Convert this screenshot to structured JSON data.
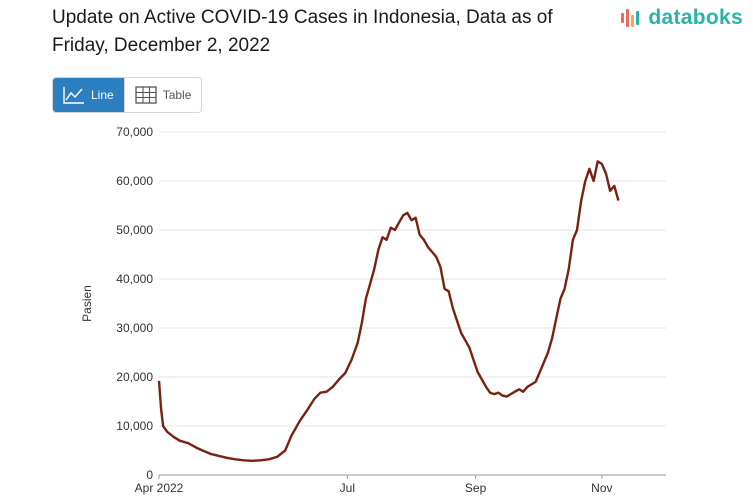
{
  "header": {
    "title_line1": "Update on Active COVID-19 Cases in Indonesia, Data as of",
    "title_line2": "Friday, December 2, 2022",
    "brand": "databoks"
  },
  "toggle": {
    "line_label": "Line",
    "table_label": "Table"
  },
  "colors": {
    "line": "#7a2113",
    "accent": "#2b7fc0",
    "brand": "#2ab3a6",
    "grid": "#e3e3e3"
  },
  "chart_data": {
    "type": "line",
    "ylabel": "Pasien",
    "ylim": [
      0,
      70000
    ],
    "yticks": [
      0,
      10000,
      20000,
      30000,
      40000,
      50000,
      60000,
      70000
    ],
    "ytick_labels": [
      "0",
      "10,000",
      "20,000",
      "30,000",
      "40,000",
      "50,000",
      "60,000",
      "70,000"
    ],
    "xlim": [
      "2022-04-01",
      "2022-12-02"
    ],
    "xticks": [
      {
        "date": "2022-04-01",
        "label": "Apr 2022"
      },
      {
        "date": "2022-07-01",
        "label": "Jul"
      },
      {
        "date": "2022-09-01",
        "label": "Sep"
      },
      {
        "date": "2022-11-01",
        "label": "Nov"
      }
    ],
    "grid": true,
    "series": [
      {
        "values": [
          [
            "2022-04-01",
            19200
          ],
          [
            "2022-04-02",
            13500
          ],
          [
            "2022-04-03",
            10000
          ],
          [
            "2022-04-05",
            8800
          ],
          [
            "2022-04-08",
            7800
          ],
          [
            "2022-04-11",
            7000
          ],
          [
            "2022-04-15",
            6500
          ],
          [
            "2022-04-19",
            5600
          ],
          [
            "2022-04-22",
            5000
          ],
          [
            "2022-04-26",
            4300
          ],
          [
            "2022-04-30",
            3900
          ],
          [
            "2022-05-04",
            3500
          ],
          [
            "2022-05-08",
            3200
          ],
          [
            "2022-05-12",
            3000
          ],
          [
            "2022-05-16",
            2900
          ],
          [
            "2022-05-20",
            3000
          ],
          [
            "2022-05-24",
            3200
          ],
          [
            "2022-05-28",
            3700
          ],
          [
            "2022-06-01",
            5000
          ],
          [
            "2022-06-04",
            8000
          ],
          [
            "2022-06-08",
            11000
          ],
          [
            "2022-06-12",
            13500
          ],
          [
            "2022-06-15",
            15500
          ],
          [
            "2022-06-18",
            16800
          ],
          [
            "2022-06-21",
            17000
          ],
          [
            "2022-06-24",
            18000
          ],
          [
            "2022-06-27",
            19500
          ],
          [
            "2022-06-30",
            20800
          ],
          [
            "2022-07-03",
            23500
          ],
          [
            "2022-07-06",
            27000
          ],
          [
            "2022-07-08",
            31000
          ],
          [
            "2022-07-10",
            36000
          ],
          [
            "2022-07-12",
            39000
          ],
          [
            "2022-07-14",
            42000
          ],
          [
            "2022-07-16",
            46000
          ],
          [
            "2022-07-18",
            48500
          ],
          [
            "2022-07-20",
            48000
          ],
          [
            "2022-07-22",
            50500
          ],
          [
            "2022-07-24",
            50000
          ],
          [
            "2022-07-26",
            51500
          ],
          [
            "2022-07-28",
            53000
          ],
          [
            "2022-07-30",
            53500
          ],
          [
            "2022-08-01",
            52000
          ],
          [
            "2022-08-03",
            52500
          ],
          [
            "2022-08-05",
            49000
          ],
          [
            "2022-08-07",
            48000
          ],
          [
            "2022-08-09",
            46500
          ],
          [
            "2022-08-11",
            45500
          ],
          [
            "2022-08-13",
            44500
          ],
          [
            "2022-08-15",
            42500
          ],
          [
            "2022-08-17",
            38000
          ],
          [
            "2022-08-19",
            37500
          ],
          [
            "2022-08-21",
            34000
          ],
          [
            "2022-08-23",
            31500
          ],
          [
            "2022-08-25",
            29000
          ],
          [
            "2022-08-27",
            27500
          ],
          [
            "2022-08-29",
            26000
          ],
          [
            "2022-08-31",
            23500
          ],
          [
            "2022-09-02",
            21000
          ],
          [
            "2022-09-04",
            19500
          ],
          [
            "2022-09-06",
            18000
          ],
          [
            "2022-09-08",
            16800
          ],
          [
            "2022-09-10",
            16500
          ],
          [
            "2022-09-12",
            16800
          ],
          [
            "2022-09-14",
            16200
          ],
          [
            "2022-09-16",
            16000
          ],
          [
            "2022-09-18",
            16500
          ],
          [
            "2022-09-20",
            17000
          ],
          [
            "2022-09-22",
            17500
          ],
          [
            "2022-09-24",
            17000
          ],
          [
            "2022-09-26",
            18000
          ],
          [
            "2022-09-28",
            18500
          ],
          [
            "2022-09-30",
            19000
          ],
          [
            "2022-10-02",
            21000
          ],
          [
            "2022-10-04",
            23000
          ],
          [
            "2022-10-06",
            25000
          ],
          [
            "2022-10-08",
            28000
          ],
          [
            "2022-10-10",
            32000
          ],
          [
            "2022-10-12",
            36000
          ],
          [
            "2022-10-14",
            38000
          ],
          [
            "2022-10-16",
            42000
          ],
          [
            "2022-10-18",
            48000
          ],
          [
            "2022-10-20",
            50000
          ],
          [
            "2022-10-22",
            56000
          ],
          [
            "2022-10-24",
            60000
          ],
          [
            "2022-10-26",
            62500
          ],
          [
            "2022-10-28",
            60000
          ],
          [
            "2022-10-30",
            64000
          ],
          [
            "2022-11-01",
            63500
          ],
          [
            "2022-11-03",
            61500
          ],
          [
            "2022-11-05",
            58000
          ],
          [
            "2022-11-07",
            59000
          ],
          [
            "2022-11-09",
            56000
          ]
        ]
      }
    ]
  }
}
